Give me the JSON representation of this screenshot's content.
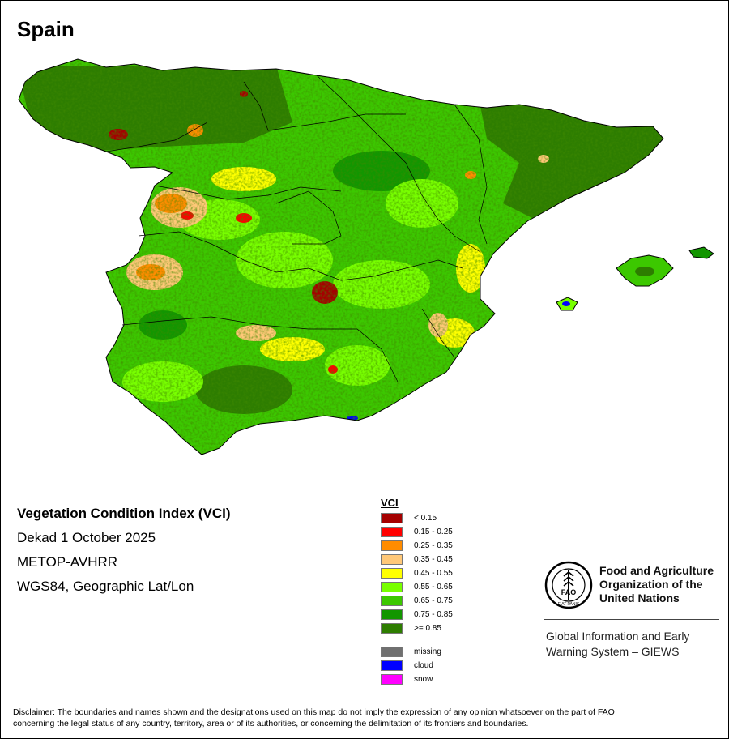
{
  "title": "Spain",
  "info": {
    "line1": "Vegetation Condition Index (VCI)",
    "line2": "Dekad 1 October 2025",
    "line3": "METOP-AVHRR",
    "line4": "WGS84, Geographic Lat/Lon"
  },
  "legend": {
    "title": "VCI",
    "classes": [
      {
        "label": "< 0.15",
        "color": "#a50000"
      },
      {
        "label": "0.15 - 0.25",
        "color": "#ff0000"
      },
      {
        "label": "0.25 - 0.35",
        "color": "#ff8c00"
      },
      {
        "label": "0.35 - 0.45",
        "color": "#ffc878"
      },
      {
        "label": "0.45 - 0.55",
        "color": "#ffff00"
      },
      {
        "label": "0.55 - 0.65",
        "color": "#78ff00"
      },
      {
        "label": "0.65 - 0.75",
        "color": "#3cc800"
      },
      {
        "label": "0.75 - 0.85",
        "color": "#129600"
      },
      {
        "label": ">= 0.85",
        "color": "#2d7d00"
      }
    ],
    "special": [
      {
        "label": "missing",
        "color": "#707070"
      },
      {
        "label": "cloud",
        "color": "#0000ff"
      },
      {
        "label": "snow",
        "color": "#ff00ff"
      }
    ]
  },
  "organization": {
    "logo_text": "FAO",
    "logo_motto": "FIAT PANIS",
    "name_line1": "Food and Agriculture",
    "name_line2": "Organization of the",
    "name_line3": "United Nations",
    "system_line1": "Global Information and Early",
    "system_line2": "Warning System – GIEWS"
  },
  "disclaimer": {
    "line1": "Disclaimer: The boundaries and names shown and the designations used on this map do not imply the expression of any opinion whatsoever on the part of FAO",
    "line2": "concerning the legal status of any country, territory, area or of its authorities, or concerning the delimitation of its frontiers and boundaries."
  }
}
